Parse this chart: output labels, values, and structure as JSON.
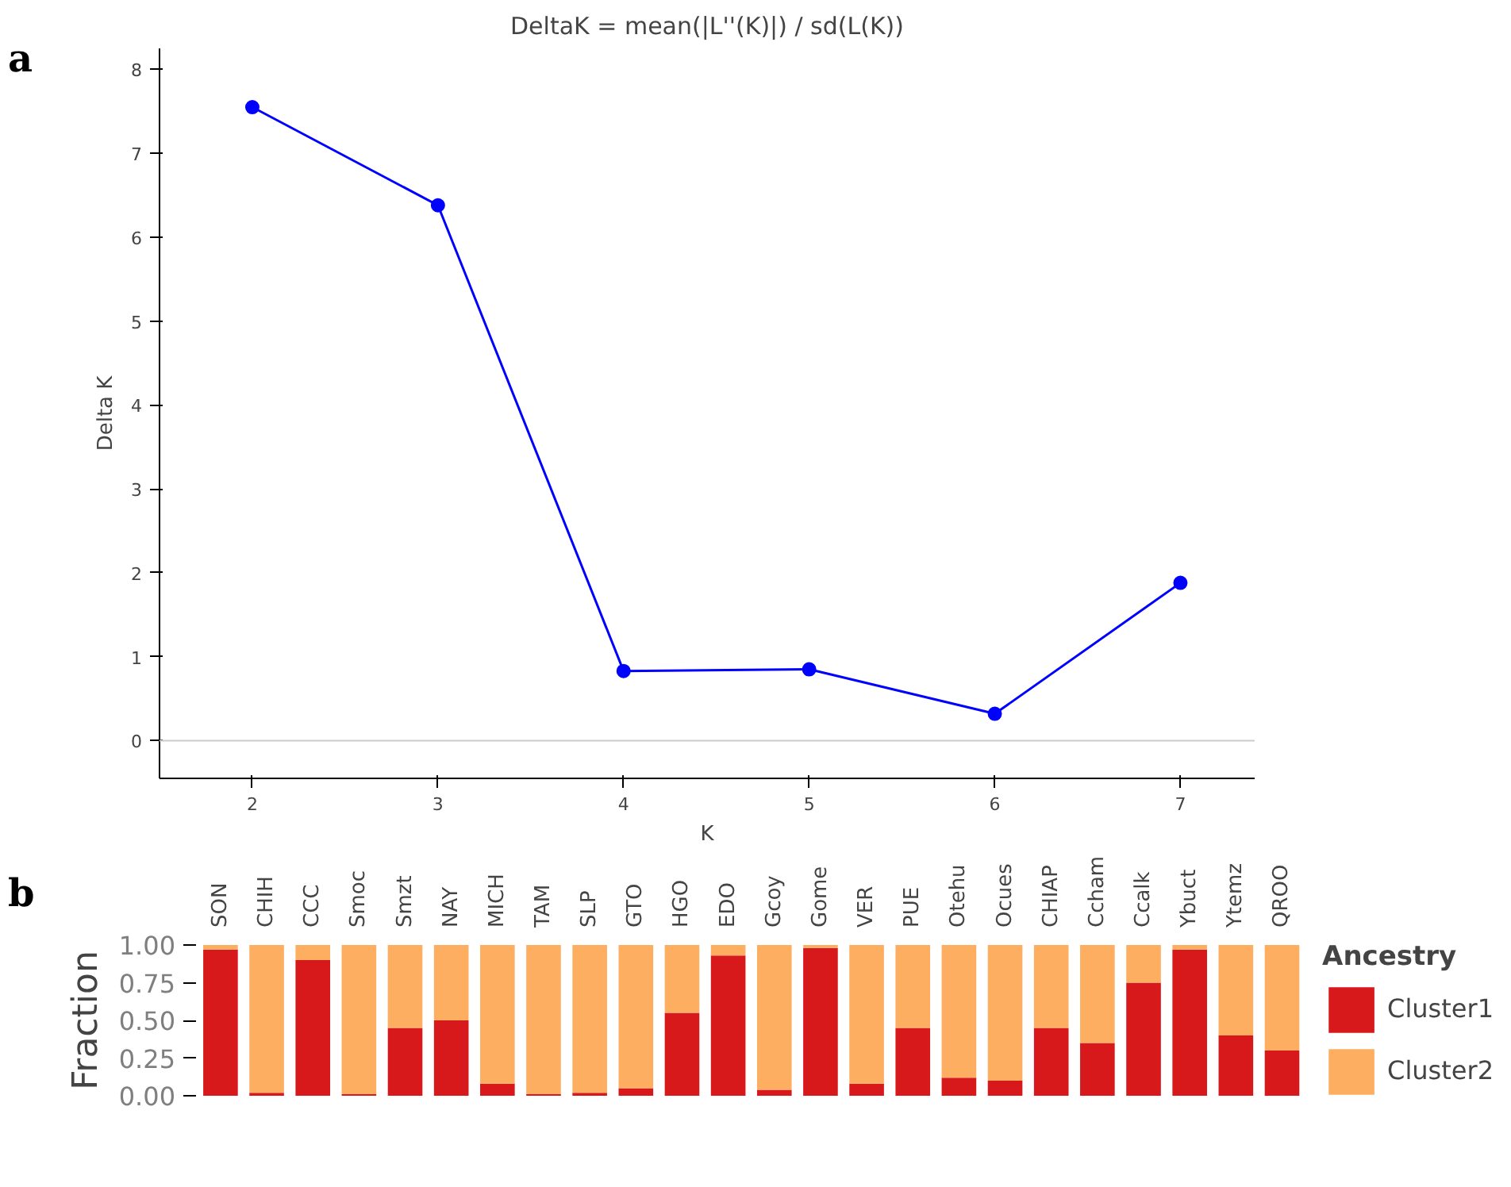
{
  "chart_data": [
    {
      "type": "line",
      "title": "DeltaK = mean(|L''(K)|) / sd(L(K))",
      "xlabel": "K",
      "ylabel": "Delta K",
      "annotations": [
        "a"
      ],
      "x": [
        2,
        3,
        4,
        5,
        6,
        7
      ],
      "series": [
        {
          "color": "#0000ff",
          "values": [
            7.55,
            6.38,
            0.83,
            0.85,
            0.32,
            1.88
          ]
        }
      ],
      "xlim": [
        1.5,
        7.4
      ],
      "ylim": [
        -0.45,
        8.25
      ],
      "xticks": [
        2,
        3,
        4,
        5,
        6,
        7
      ],
      "yticks": [
        0,
        1,
        2,
        3,
        4,
        5,
        6,
        7,
        8
      ],
      "ref_lines": [
        {
          "axis": "y",
          "value": 0,
          "color": "#cccccc"
        }
      ],
      "marker": "circle",
      "grid": false
    },
    {
      "type": "bar",
      "stacked": true,
      "ylabel": "Fraction",
      "legend_title": "Ancestry",
      "annotations": [
        "b"
      ],
      "legend": "right",
      "categories": [
        "SON",
        "CHIH",
        "CCC",
        "Smoc",
        "Smzt",
        "NAY",
        "MICH",
        "TAM",
        "SLP",
        "GTO",
        "HGO",
        "EDO",
        "Gcoy",
        "Gome",
        "VER",
        "PUE",
        "Otehu",
        "Ocues",
        "CHIAP",
        "Ccham",
        "Ccalk",
        "Ybuct",
        "Ytemz",
        "QROO"
      ],
      "series": [
        {
          "name": "Cluster1",
          "color": "#d7191c",
          "values": [
            0.97,
            0.02,
            0.9,
            0.01,
            0.45,
            0.5,
            0.08,
            0.01,
            0.02,
            0.05,
            0.55,
            0.93,
            0.04,
            0.98,
            0.08,
            0.45,
            0.12,
            0.1,
            0.45,
            0.35,
            0.75,
            0.97,
            0.4,
            0.3
          ]
        },
        {
          "name": "Cluster2",
          "color": "#fdae61",
          "values": [
            0.03,
            0.98,
            0.1,
            0.99,
            0.55,
            0.5,
            0.92,
            0.99,
            0.98,
            0.95,
            0.45,
            0.07,
            0.96,
            0.02,
            0.92,
            0.55,
            0.88,
            0.9,
            0.55,
            0.65,
            0.25,
            0.03,
            0.6,
            0.7
          ]
        }
      ],
      "ylim": [
        0,
        1
      ],
      "yticks": [
        {
          "value": 0,
          "label": "0.00"
        },
        {
          "value": 0.25,
          "label": "0.25"
        },
        {
          "value": 0.5,
          "label": "0.50"
        },
        {
          "value": 0.75,
          "label": "0.75"
        },
        {
          "value": 1,
          "label": "1.00"
        }
      ],
      "grid": false
    }
  ]
}
